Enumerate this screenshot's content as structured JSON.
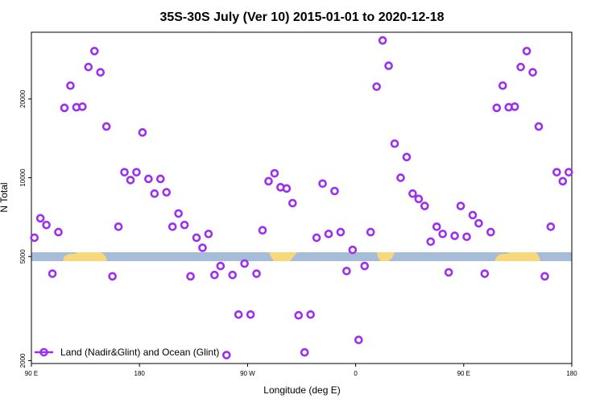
{
  "chart_data": {
    "type": "scatter",
    "title": "35S-30S July (Ver 10)   2015-01-01 to 2020-12-18",
    "xlabel": "Longitude (deg E)",
    "ylabel": "N Total",
    "y_scale": "log",
    "xlim": [
      90,
      540
    ],
    "ylim": [
      1950,
      36000
    ],
    "x_ticks": [
      {
        "value": 90,
        "label": "90 E"
      },
      {
        "value": 180,
        "label": "180"
      },
      {
        "value": 270,
        "label": "90 W"
      },
      {
        "value": 360,
        "label": "0"
      },
      {
        "value": 450,
        "label": "90 E"
      },
      {
        "value": 540,
        "label": "180"
      }
    ],
    "y_ticks": [
      {
        "value": 2000,
        "label": "2000"
      },
      {
        "value": 5000,
        "label": "5000"
      },
      {
        "value": 10000,
        "label": "10000"
      },
      {
        "value": 20000,
        "label": "20000"
      }
    ],
    "legend": {
      "position": "bottom-left",
      "entries": [
        "Land (Nadir&Glint) and Ocean (Glint)"
      ]
    },
    "colors": {
      "marker": "#9b30f0",
      "ocean": "#a7bcd9",
      "land": "#f7d87a"
    },
    "series": [
      {
        "name": "Land (Nadir&Glint) and Ocean (Glint)",
        "points": [
          [
            92.5,
            5900
          ],
          [
            97.5,
            7000
          ],
          [
            102.5,
            6600
          ],
          [
            107.5,
            4300
          ],
          [
            112.5,
            6200
          ],
          [
            117.5,
            18500
          ],
          [
            122.5,
            22500
          ],
          [
            127.5,
            18600
          ],
          [
            132.5,
            18700
          ],
          [
            137.5,
            26500
          ],
          [
            142.5,
            30500
          ],
          [
            147.5,
            25300
          ],
          [
            152.5,
            15700
          ],
          [
            157.5,
            4200
          ],
          [
            162.5,
            6500
          ],
          [
            167.5,
            10500
          ],
          [
            172.5,
            9800
          ],
          [
            177.5,
            10500
          ],
          [
            182.5,
            14900
          ],
          [
            187.5,
            9900
          ],
          [
            192.5,
            8700
          ],
          [
            197.5,
            9900
          ],
          [
            202.5,
            8800
          ],
          [
            207.5,
            6500
          ],
          [
            212.5,
            7300
          ],
          [
            217.5,
            6600
          ],
          [
            222.5,
            4200
          ],
          [
            227.5,
            5900
          ],
          [
            232.5,
            5400
          ],
          [
            237.5,
            6100
          ],
          [
            242.5,
            4250
          ],
          [
            247.5,
            4600
          ],
          [
            252.5,
            2100
          ],
          [
            257.5,
            4250
          ],
          [
            262.5,
            3000
          ],
          [
            267.5,
            4700
          ],
          [
            272.5,
            3000
          ],
          [
            277.5,
            4300
          ],
          [
            282.5,
            6300
          ],
          [
            287.5,
            9700
          ],
          [
            292.5,
            10400
          ],
          [
            297.5,
            9200
          ],
          [
            302.5,
            9100
          ],
          [
            307.5,
            8000
          ],
          [
            312.5,
            2980
          ],
          [
            317.5,
            2150
          ],
          [
            322.5,
            3000
          ],
          [
            327.5,
            5900
          ],
          [
            332.5,
            9500
          ],
          [
            337.5,
            6100
          ],
          [
            342.5,
            8900
          ],
          [
            347.5,
            6200
          ],
          [
            352.5,
            4400
          ],
          [
            357.5,
            5300
          ],
          [
            362.5,
            2400
          ],
          [
            367.5,
            4600
          ],
          [
            372.5,
            6200
          ],
          [
            377.5,
            22300
          ],
          [
            382.5,
            33500
          ],
          [
            387.5,
            26800
          ],
          [
            392.5,
            13500
          ],
          [
            397.5,
            10000
          ],
          [
            402.5,
            12000
          ],
          [
            407.5,
            8700
          ],
          [
            412.5,
            8300
          ],
          [
            417.5,
            7800
          ],
          [
            422.5,
            5700
          ],
          [
            427.5,
            6500
          ],
          [
            432.5,
            6100
          ],
          [
            437.5,
            4350
          ],
          [
            442.5,
            6000
          ],
          [
            447.5,
            7800
          ],
          [
            452.5,
            5950
          ],
          [
            457.5,
            7200
          ],
          [
            462.5,
            6700
          ],
          [
            467.5,
            4300
          ],
          [
            472.5,
            6200
          ],
          [
            477.5,
            18500
          ],
          [
            482.5,
            22500
          ],
          [
            487.5,
            18600
          ],
          [
            492.5,
            18700
          ],
          [
            497.5,
            26500
          ],
          [
            502.5,
            30500
          ],
          [
            507.5,
            25300
          ],
          [
            512.5,
            15700
          ],
          [
            517.5,
            4200
          ],
          [
            522.5,
            6500
          ],
          [
            527.5,
            10500
          ],
          [
            532.5,
            9700
          ],
          [
            537.5,
            10500
          ]
        ]
      }
    ]
  }
}
